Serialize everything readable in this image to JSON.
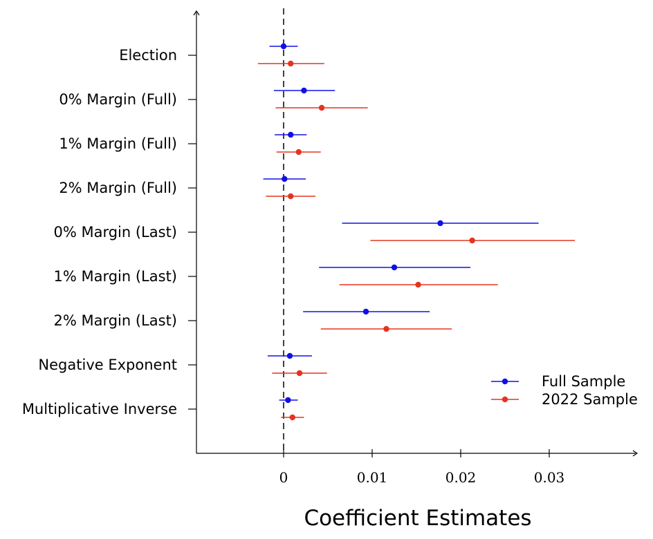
{
  "chart_data": {
    "type": "scatter",
    "subtype": "coefficient-plot-with-confidence-intervals",
    "title": "",
    "xlabel": "Coefficient Estimates",
    "ylabel": "",
    "xlim": [
      -0.01,
      0.04
    ],
    "xticks": [
      0,
      0.01,
      0.02,
      0.03
    ],
    "xtick_labels": [
      "0",
      "0.01",
      "0.02",
      "0.03"
    ],
    "reference_line": {
      "x": 0,
      "style": "dashed"
    },
    "grid": false,
    "legend_position": "bottom-right",
    "categories": [
      "Election",
      "0% Margin (Full)",
      "1% Margin (Full)",
      "2% Margin (Full)",
      "0% Margin (Last)",
      "1% Margin (Last)",
      "2% Margin (Last)",
      "Negative Exponent",
      "Multiplicative Inverse"
    ],
    "series": [
      {
        "name": "Full Sample",
        "color": "#1010e6",
        "estimates": [
          0.0,
          0.0023,
          0.0008,
          0.0001,
          0.0177,
          0.0125,
          0.0093,
          0.0007,
          0.0005
        ],
        "ci_low": [
          -0.0016,
          -0.0011,
          -0.001,
          -0.0023,
          0.0066,
          0.004,
          0.0022,
          -0.0018,
          -0.0005
        ],
        "ci_high": [
          0.0016,
          0.0058,
          0.0026,
          0.0025,
          0.0288,
          0.0211,
          0.0165,
          0.0032,
          0.0016
        ]
      },
      {
        "name": "2022 Sample",
        "color": "#e6331f",
        "estimates": [
          0.0008,
          0.0043,
          0.0017,
          0.0008,
          0.0213,
          0.0152,
          0.0116,
          0.0018,
          0.001
        ],
        "ci_low": [
          -0.0029,
          -0.0009,
          -0.0008,
          -0.002,
          0.0098,
          0.0063,
          0.0042,
          -0.0013,
          -0.0003
        ],
        "ci_high": [
          0.0046,
          0.0095,
          0.0042,
          0.0036,
          0.0329,
          0.0242,
          0.019,
          0.0049,
          0.0023
        ]
      }
    ]
  }
}
